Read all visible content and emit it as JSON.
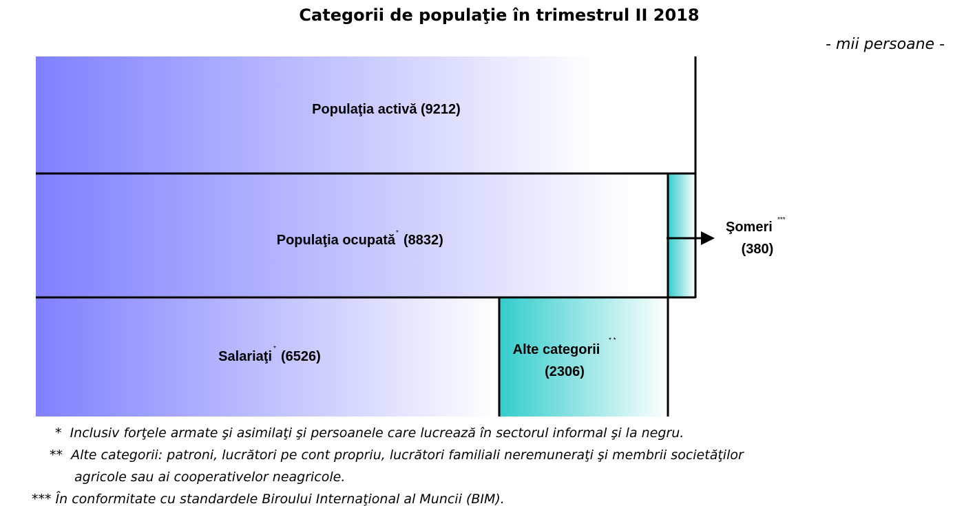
{
  "header": {
    "title": "Categorii de populaţie în trimestrul II 2018",
    "unit": "- mii persoane -"
  },
  "blocks": {
    "activa": {
      "label": "Populaţia activă (9212)"
    },
    "ocupata": {
      "label": "Populaţia ocupată",
      "note": "*",
      "value": "(8832)"
    },
    "salariati": {
      "label": "Salariaţi",
      "note": "*",
      "value": "(6526)"
    },
    "alte": {
      "label": "Alte categorii",
      "note": "* *",
      "value": "(2306)"
    },
    "someri": {
      "label": "Şomeri",
      "note": "***",
      "value": "(380)"
    }
  },
  "footnotes": [
    "*  Inclusiv forţele armate şi asimilaţi şi persoanele care lucrează în sectorul informal şi la negru.",
    "**  Alte categorii: patroni, lucrători pe cont propriu, lucrători familiali neremuneraţi şi membrii societăţilor",
    "agricole sau ai cooperativelor neagricole.",
    "*** În conformitate cu standardele Biroului Internaţional al Muncii (BIM)."
  ]
}
